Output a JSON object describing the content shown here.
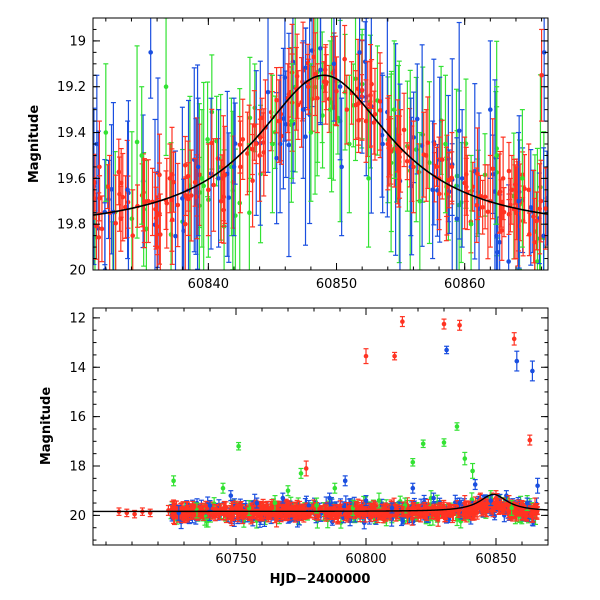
{
  "colors": {
    "red": "#ff3322",
    "green": "#33e233",
    "blue": "#1a4fe0",
    "model": "#000000",
    "frame": "#000000"
  },
  "chart_data": [
    {
      "type": "scatter",
      "panel": "top",
      "xlabel": "",
      "ylabel": "Magnitude",
      "xlim": [
        60831,
        60866.5
      ],
      "ylim": [
        20.0,
        18.9
      ],
      "y_inverted": true,
      "x_ticks": [
        60840,
        60850,
        60860
      ],
      "x_tick_labels": [
        "60840",
        "60850",
        "60860"
      ],
      "y_ticks": [
        19.0,
        19.2,
        19.4,
        19.6,
        19.8,
        20.0
      ],
      "y_tick_labels": [
        "19",
        "19.2",
        "19.4",
        "19.6",
        "19.8",
        "20"
      ],
      "grid": false,
      "model_curve": {
        "type": "lorentzian",
        "peak_x": 60849,
        "peak_mag": 19.15,
        "base_mag": 19.84,
        "width_days": 6.5
      },
      "series": [
        {
          "color": "red",
          "points": [
            [
              60831.5,
              19.55,
              0.2
            ],
            [
              60832.3,
              19.75,
              0.25
            ],
            [
              60833.2,
              19.62,
              0.15
            ],
            [
              60834.1,
              19.85,
              0.2
            ],
            [
              60835.0,
              19.7,
              0.18
            ],
            [
              60836.0,
              19.9,
              0.2
            ],
            [
              60837.0,
              19.6,
              0.15
            ],
            [
              60838.2,
              19.8,
              0.2
            ],
            [
              60840.0,
              19.65,
              0.2
            ],
            [
              60841.0,
              19.7,
              0.18
            ],
            [
              60842.5,
              19.55,
              0.2
            ],
            [
              60844.0,
              19.5,
              0.2
            ],
            [
              60845.5,
              19.35,
              0.18
            ],
            [
              60846.2,
              19.25,
              0.15
            ],
            [
              60847.0,
              19.28,
              0.15
            ],
            [
              60847.8,
              19.2,
              0.12
            ],
            [
              60848.5,
              19.25,
              0.15
            ],
            [
              60849.2,
              19.18,
              0.12
            ],
            [
              60850.0,
              19.22,
              0.15
            ],
            [
              60850.8,
              19.3,
              0.15
            ],
            [
              60851.5,
              19.28,
              0.15
            ],
            [
              60852.3,
              19.35,
              0.18
            ],
            [
              60853.0,
              19.32,
              0.2
            ],
            [
              60854.0,
              19.45,
              0.2
            ],
            [
              60855.0,
              19.48,
              0.18
            ],
            [
              60856.0,
              19.55,
              0.2
            ],
            [
              60857.0,
              19.5,
              0.2
            ],
            [
              60858.0,
              19.6,
              0.18
            ],
            [
              60859.0,
              19.55,
              0.15
            ],
            [
              60860.0,
              19.62,
              0.2
            ],
            [
              60861.0,
              19.58,
              0.2
            ],
            [
              60862.0,
              19.7,
              0.2
            ],
            [
              60863.0,
              19.6,
              0.18
            ],
            [
              60864.0,
              19.75,
              0.2
            ],
            [
              60865.0,
              19.65,
              0.2
            ],
            [
              60866.0,
              19.15,
              0.2
            ]
          ]
        },
        {
          "color": "green",
          "points": [
            [
              60832.0,
              19.4,
              0.3
            ],
            [
              60834.8,
              19.5,
              0.3
            ],
            [
              60836.7,
              19.2,
              0.3
            ],
            [
              60839.5,
              19.6,
              0.3
            ],
            [
              60841.8,
              19.55,
              0.3
            ],
            [
              60843.2,
              19.75,
              0.3
            ],
            [
              60845.0,
              19.45,
              0.3
            ],
            [
              60846.5,
              19.35,
              0.25
            ],
            [
              60848.0,
              19.4,
              0.3
            ],
            [
              60849.5,
              19.3,
              0.3
            ],
            [
              60851.0,
              19.45,
              0.3
            ],
            [
              60852.5,
              19.6,
              0.3
            ],
            [
              60854.5,
              19.3,
              0.3
            ],
            [
              60856.5,
              19.7,
              0.3
            ],
            [
              60858.5,
              19.45,
              0.3
            ],
            [
              60860.5,
              19.8,
              0.3
            ],
            [
              60862.5,
              19.5,
              0.3
            ],
            [
              60864.5,
              19.6,
              0.3
            ]
          ]
        },
        {
          "color": "blue",
          "points": [
            [
              60831.3,
              19.45,
              0.3
            ],
            [
              60833.7,
              19.65,
              0.3
            ],
            [
              60835.5,
              19.05,
              0.2
            ],
            [
              60839.2,
              19.55,
              0.3
            ],
            [
              60840.8,
              19.6,
              0.3
            ],
            [
              60842.0,
              19.55,
              0.3
            ],
            [
              60845.6,
              19.45,
              0.3
            ],
            [
              60847.4,
              19.3,
              0.3
            ],
            [
              60849.8,
              19.1,
              0.25
            ],
            [
              60850.4,
              19.55,
              0.3
            ],
            [
              60851.8,
              19.05,
              0.2
            ],
            [
              60853.6,
              19.45,
              0.3
            ],
            [
              60855.8,
              19.55,
              0.3
            ],
            [
              60857.5,
              19.65,
              0.3
            ],
            [
              60859.8,
              19.6,
              0.3
            ],
            [
              60862.0,
              19.3,
              0.3
            ],
            [
              60864.2,
              19.7,
              0.3
            ],
            [
              60866.2,
              19.05,
              0.3
            ]
          ]
        }
      ]
    },
    {
      "type": "scatter",
      "panel": "bottom",
      "xlabel": "HJD−2400000",
      "ylabel": "Magnitude",
      "xlim": [
        60695,
        60870
      ],
      "ylim": [
        21.2,
        11.6
      ],
      "y_inverted": true,
      "x_ticks": [
        60750,
        60800,
        60850
      ],
      "x_tick_labels": [
        "60750",
        "60800",
        "60850"
      ],
      "y_ticks": [
        12,
        14,
        16,
        18,
        20
      ],
      "y_tick_labels": [
        "12",
        "14",
        "16",
        "18",
        "20"
      ],
      "grid": false,
      "model_curve": {
        "type": "lorentzian",
        "peak_x": 60849,
        "peak_mag": 19.15,
        "base_mag": 19.84,
        "width_days": 6.5
      },
      "series": [
        {
          "color": "red",
          "points": [
            [
              60705,
              19.85,
              0.15
            ],
            [
              60708,
              19.9,
              0.15
            ],
            [
              60711,
              19.95,
              0.15
            ],
            [
              60714,
              19.85,
              0.15
            ],
            [
              60717,
              19.9,
              0.15
            ],
            [
              60724,
              19.8,
              0.2
            ],
            [
              60730,
              19.9,
              0.2
            ],
            [
              60736,
              19.85,
              0.2
            ],
            [
              60742,
              19.9,
              0.2
            ],
            [
              60748,
              19.8,
              0.2
            ],
            [
              60754,
              19.85,
              0.2
            ],
            [
              60760,
              19.9,
              0.2
            ],
            [
              60766,
              19.8,
              0.2
            ],
            [
              60772,
              19.85,
              0.2
            ],
            [
              60778,
              19.9,
              0.2
            ],
            [
              60777,
              18.1,
              0.3
            ],
            [
              60784,
              19.85,
              0.2
            ],
            [
              60790,
              19.8,
              0.2
            ],
            [
              60796,
              19.85,
              0.2
            ],
            [
              60802,
              19.9,
              0.2
            ],
            [
              60800,
              13.55,
              0.3
            ],
            [
              60808,
              19.8,
              0.2
            ],
            [
              60811,
              13.55,
              0.15
            ],
            [
              60814,
              12.15,
              0.2
            ],
            [
              60814,
              19.85,
              0.2
            ],
            [
              60820,
              19.9,
              0.2
            ],
            [
              60826,
              19.8,
              0.2
            ],
            [
              60830,
              12.25,
              0.2
            ],
            [
              60832,
              19.85,
              0.2
            ],
            [
              60836,
              12.3,
              0.2
            ],
            [
              60838,
              19.5,
              0.3
            ],
            [
              60844,
              19.4,
              0.3
            ],
            [
              60850,
              19.3,
              0.3
            ],
            [
              60855,
              19.5,
              0.3
            ],
            [
              60857,
              12.85,
              0.25
            ],
            [
              60860,
              19.7,
              0.3
            ],
            [
              60863,
              16.95,
              0.2
            ],
            [
              60865,
              19.6,
              0.3
            ]
          ]
        },
        {
          "color": "green",
          "points": [
            [
              60726,
              18.6,
              0.2
            ],
            [
              60735,
              19.8,
              0.3
            ],
            [
              60745,
              18.9,
              0.2
            ],
            [
              60751,
              17.2,
              0.15
            ],
            [
              60755,
              19.7,
              0.3
            ],
            [
              60765,
              19.5,
              0.3
            ],
            [
              60770,
              19.0,
              0.2
            ],
            [
              60775,
              18.3,
              0.2
            ],
            [
              60781,
              19.6,
              0.3
            ],
            [
              60788,
              18.9,
              0.2
            ],
            [
              60795,
              19.7,
              0.3
            ],
            [
              60805,
              19.4,
              0.3
            ],
            [
              60815,
              19.6,
              0.3
            ],
            [
              60818,
              17.85,
              0.15
            ],
            [
              60822,
              17.1,
              0.15
            ],
            [
              60825,
              19.3,
              0.3
            ],
            [
              60830,
              17.05,
              0.15
            ],
            [
              60835,
              16.4,
              0.15
            ],
            [
              60838,
              17.7,
              0.25
            ],
            [
              60841,
              18.2,
              0.3
            ],
            [
              60848,
              19.3,
              0.3
            ],
            [
              60856,
              19.7,
              0.3
            ],
            [
              60862,
              19.5,
              0.3
            ]
          ]
        },
        {
          "color": "blue",
          "points": [
            [
              60728,
              19.9,
              0.3
            ],
            [
              60740,
              19.6,
              0.2
            ],
            [
              60748,
              19.2,
              0.2
            ],
            [
              60758,
              19.5,
              0.2
            ],
            [
              60768,
              19.3,
              0.2
            ],
            [
              60778,
              19.6,
              0.2
            ],
            [
              60786,
              19.3,
              0.2
            ],
            [
              60792,
              18.6,
              0.2
            ],
            [
              60800,
              19.4,
              0.2
            ],
            [
              60810,
              19.7,
              0.2
            ],
            [
              60818,
              18.9,
              0.2
            ],
            [
              60826,
              19.3,
              0.2
            ],
            [
              60831,
              13.3,
              0.15
            ],
            [
              60836,
              19.5,
              0.2
            ],
            [
              60842,
              18.75,
              0.2
            ],
            [
              60848,
              19.4,
              0.2
            ],
            [
              60854,
              19.2,
              0.2
            ],
            [
              60858,
              13.75,
              0.4
            ],
            [
              60862,
              19.5,
              0.2
            ],
            [
              60864,
              14.15,
              0.4
            ],
            [
              60866,
              18.8,
              0.3
            ]
          ]
        }
      ],
      "dense_band": {
        "x_range": [
          60725,
          60866
        ],
        "base_mag": 19.85,
        "scatter_mag": 0.3
      }
    }
  ]
}
